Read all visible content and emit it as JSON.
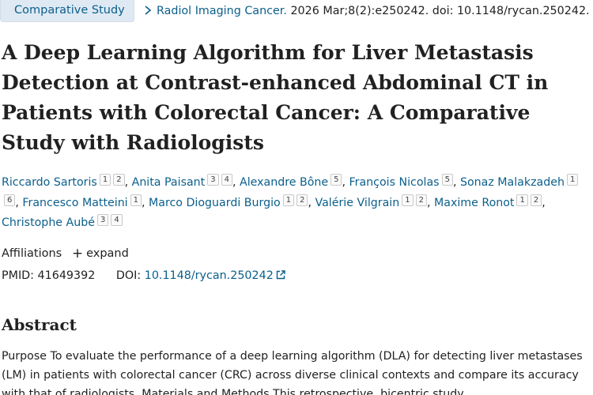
{
  "header": {
    "article_type": "Comparative Study",
    "journal": "Radiol Imaging Cancer.",
    "citation": " 2026 Mar;8(2):e250242. doi: 10.1148/rycan.250242."
  },
  "title": "A Deep Learning Algorithm for Liver Metastasis Detection at Contrast-enhanced Abdominal CT in Patients with Colorectal Cancer: A Comparative Study with Radiologists",
  "authors": [
    {
      "name": "Riccardo Sartoris",
      "affiliations": [
        "1",
        "2"
      ]
    },
    {
      "name": "Anita Paisant",
      "affiliations": [
        "3",
        "4"
      ]
    },
    {
      "name": "Alexandre Bône",
      "affiliations": [
        "5"
      ]
    },
    {
      "name": "François Nicolas",
      "affiliations": [
        "5"
      ]
    },
    {
      "name": "Sonaz Malakzadeh",
      "affiliations": [
        "1",
        "6"
      ]
    },
    {
      "name": "Francesco Matteini",
      "affiliations": [
        "1"
      ]
    },
    {
      "name": "Marco Dioguardi Burgio",
      "affiliations": [
        "1",
        "2"
      ]
    },
    {
      "name": "Valérie Vilgrain",
      "affiliations": [
        "1",
        "2"
      ]
    },
    {
      "name": "Maxime Ronot",
      "affiliations": [
        "1",
        "2"
      ]
    },
    {
      "name": "Christophe Aubé",
      "affiliations": [
        "3",
        "4"
      ]
    }
  ],
  "affiliations": {
    "label": "Affiliations",
    "expand_label": "expand"
  },
  "identifiers": {
    "pmid_label": "PMID:",
    "pmid": "41649392",
    "doi_label": "DOI:",
    "doi": "10.1148/rycan.250242"
  },
  "abstract": {
    "heading": "Abstract",
    "text": "Purpose To evaluate the performance of a deep learning algorithm (DLA) for detecting liver metastases (LM) in patients with colorectal cancer (CRC) across diverse clinical contexts and compare its accuracy with that of radiologists. Materials and Methods This retrospective, bicentric study"
  },
  "colors": {
    "link": "#0b5f8c",
    "badge_bg": "#dfe9f3",
    "text": "#212121"
  },
  "icons": {
    "chevron": "chevron-right-icon",
    "plus": "plus-icon",
    "external": "external-link-icon"
  }
}
